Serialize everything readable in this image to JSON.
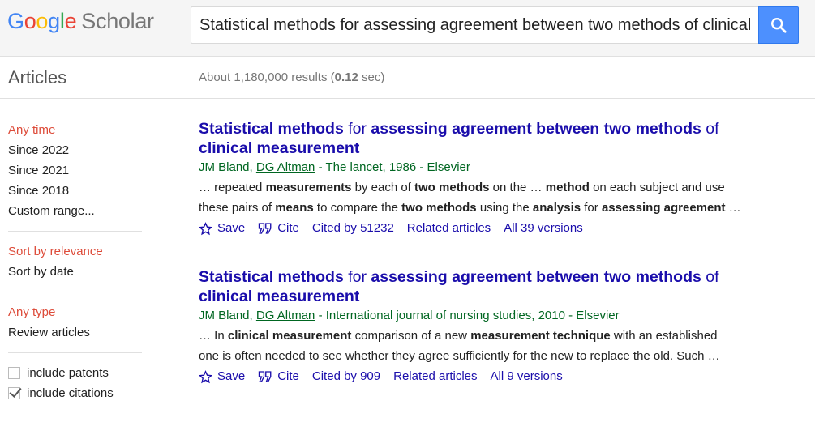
{
  "header": {
    "logo": {
      "g1": "G",
      "g2": "o",
      "g3": "o",
      "g4": "g",
      "g5": "l",
      "g6": "e",
      "scholar": "Scholar"
    },
    "search_value": "Statistical methods for assessing agreement between two methods of clinical measurement",
    "search_icon": "search-icon"
  },
  "subheader": {
    "section_title": "Articles",
    "stats_prefix": "About 1,180,000 results (",
    "stats_time": "0.12",
    "stats_suffix": " sec)"
  },
  "sidebar": {
    "time": [
      "Any time",
      "Since 2022",
      "Since 2021",
      "Since 2018",
      "Custom range..."
    ],
    "sort": [
      "Sort by relevance",
      "Sort by date"
    ],
    "type": [
      "Any type",
      "Review articles"
    ],
    "checks": [
      {
        "label": "include patents",
        "checked": false
      },
      {
        "label": "include citations",
        "checked": true
      }
    ]
  },
  "results": [
    {
      "title_parts": [
        "Statistical methods",
        " for ",
        "assessing agreement between two methods",
        " of ",
        "clinical measurement"
      ],
      "author1": "JM Bland",
      "sep": ", ",
      "author2": "DG Altman",
      "source": " - The lancet, 1986 - Elsevier",
      "snippet_line1": [
        "… repeated ",
        "measurements",
        " by each of ",
        "two methods",
        " on the … ",
        "method",
        " on each subject and use"
      ],
      "snippet_line2": [
        "these pairs of ",
        "means",
        " to compare the ",
        "two methods",
        " using the ",
        "analysis",
        " for ",
        "assessing agreement",
        " …"
      ],
      "links": {
        "save": "Save",
        "cite": "Cite",
        "cited_by": "Cited by 51232",
        "related": "Related articles",
        "versions": "All 39 versions"
      }
    },
    {
      "title_parts": [
        "Statistical methods",
        " for ",
        "assessing agreement between two methods",
        " of ",
        "clinical measurement"
      ],
      "author1": "JM Bland",
      "sep": ", ",
      "author2": "DG Altman",
      "source": " - International journal of nursing studies, 2010 - Elsevier",
      "snippet_line1": [
        "… In ",
        "clinical measurement",
        " comparison of a new ",
        "measurement technique",
        " with an established"
      ],
      "snippet_line2": [
        "one is often needed to see whether they agree sufficiently for the new to replace the old. Such …"
      ],
      "links": {
        "save": "Save",
        "cite": "Cite",
        "cited_by": "Cited by 909",
        "related": "Related articles",
        "versions": "All 9 versions"
      }
    }
  ],
  "colors": {
    "link": "#1a0dab",
    "green": "#006621",
    "active": "#dd4b39",
    "button": "#4d90fe"
  }
}
